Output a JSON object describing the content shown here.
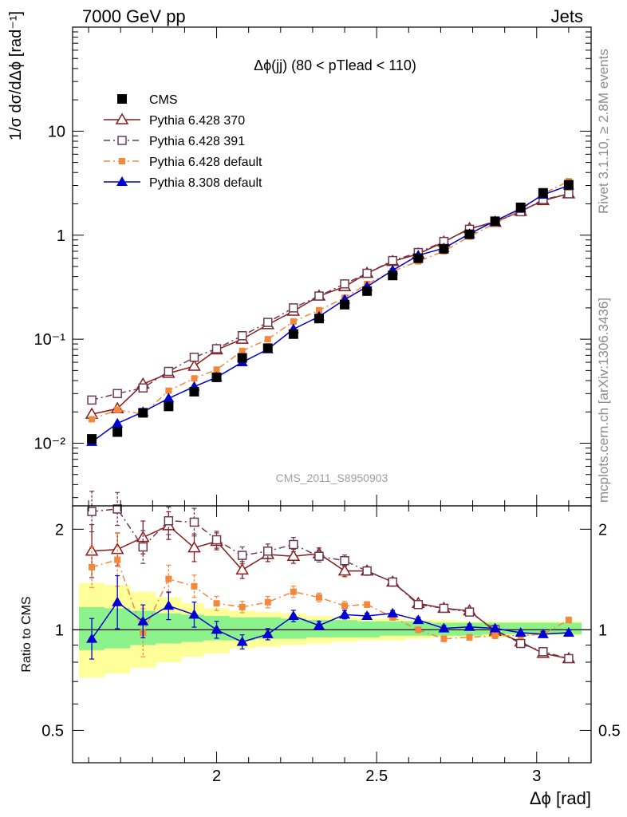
{
  "header": {
    "left": "7000 GeV pp",
    "right": "Jets"
  },
  "side_text": {
    "top": "Rivet 3.1.10, ≥ 2.8M events",
    "bottom": "mcplots.cern.ch [arXiv:1306.3436]"
  },
  "chart_data": {
    "type": "scatter",
    "title": "Δϕ(jj) (80 < pTlead <  110)",
    "watermark": "CMS_2011_S8950903",
    "xlabel": "Δϕ [rad]",
    "ylabel_main": "1/σ dσ/dΔϕ [rad⁻¹]",
    "ylabel_ratio": "Ratio to CMS",
    "x_range": [
      1.55,
      3.17
    ],
    "y_range_main": [
      0.0025,
      100
    ],
    "y_scale_main": "log",
    "y_range_ratio": [
      0.4,
      2.35
    ],
    "y_scale_ratio": "log",
    "x_ticks": [
      "2",
      "2.5",
      "3"
    ],
    "x_tick_values": [
      2,
      2.5,
      3
    ],
    "y_ticks_main": [
      "10⁻²",
      "10⁻¹",
      "1",
      "10"
    ],
    "y_tick_values_main": [
      0.01,
      0.1,
      1,
      10
    ],
    "y_ticks_ratio": [
      "0.5",
      "1",
      "2"
    ],
    "y_tick_values_ratio": [
      0.5,
      1,
      2
    ],
    "legend_position": "top-left",
    "x": [
      1.61,
      1.69,
      1.77,
      1.85,
      1.93,
      2.0,
      2.08,
      2.16,
      2.24,
      2.32,
      2.4,
      2.47,
      2.55,
      2.63,
      2.71,
      2.79,
      2.87,
      2.95,
      3.02,
      3.1
    ],
    "band_edges": [
      1.57,
      1.65,
      1.73,
      1.81,
      1.89,
      1.96,
      2.04,
      2.12,
      2.2,
      2.28,
      2.36,
      2.44,
      2.51,
      2.59,
      2.67,
      2.75,
      2.83,
      2.91,
      2.99,
      3.06,
      3.14
    ],
    "band_green_lo": [
      0.87,
      0.88,
      0.9,
      0.91,
      0.92,
      0.93,
      0.93,
      0.94,
      0.94,
      0.95,
      0.95,
      0.95,
      0.96,
      0.96,
      0.96,
      0.96,
      0.97,
      0.97,
      0.97,
      0.97
    ],
    "band_green_hi": [
      1.17,
      1.16,
      1.14,
      1.12,
      1.11,
      1.1,
      1.09,
      1.09,
      1.08,
      1.07,
      1.07,
      1.06,
      1.06,
      1.06,
      1.05,
      1.05,
      1.05,
      1.05,
      1.05,
      1.05
    ],
    "band_yellow_lo": [
      0.72,
      0.74,
      0.77,
      0.8,
      0.83,
      0.85,
      0.88,
      0.89,
      0.9,
      0.91,
      0.92,
      0.93,
      0.93,
      0.94,
      0.95,
      0.95,
      0.95,
      0.96,
      0.96,
      0.96
    ],
    "band_yellow_hi": [
      1.38,
      1.36,
      1.3,
      1.25,
      1.2,
      1.16,
      1.14,
      1.13,
      1.12,
      1.1,
      1.09,
      1.08,
      1.08,
      1.07,
      1.07,
      1.06,
      1.06,
      1.06,
      1.06,
      1.06
    ],
    "series": [
      {
        "name": "CMS",
        "color": "#000000",
        "marker": "square-filled",
        "line": "none",
        "values": [
          0.011,
          0.0128,
          0.0196,
          0.0226,
          0.0313,
          0.043,
          0.066,
          0.082,
          0.112,
          0.158,
          0.215,
          0.29,
          0.41,
          0.6,
          0.74,
          1.02,
          1.36,
          1.85,
          2.55,
          3.05
        ],
        "ratio": [
          1,
          1,
          1,
          1,
          1,
          1,
          1,
          1,
          1,
          1,
          1,
          1,
          1,
          1,
          1,
          1,
          1,
          1,
          1,
          1
        ]
      },
      {
        "name": "Pythia 6.428 370",
        "color": "#8b1a1a",
        "marker": "triangle-open",
        "line": "solid",
        "values": [
          0.019,
          0.0215,
          0.037,
          0.047,
          0.055,
          0.079,
          0.1,
          0.138,
          0.186,
          0.26,
          0.32,
          0.43,
          0.56,
          0.66,
          0.86,
          1.16,
          1.33,
          1.7,
          2.15,
          2.5
        ],
        "ratio": [
          1.72,
          1.74,
          1.89,
          2.05,
          1.76,
          1.84,
          1.51,
          1.68,
          1.66,
          1.69,
          1.5,
          1.5,
          1.39,
          1.2,
          1.16,
          1.14,
          0.99,
          0.92,
          0.85,
          0.82
        ],
        "ratio_err": [
          0.2,
          0.12,
          0.12,
          0.1,
          0.1,
          0.06,
          0.06,
          0.05,
          0.05,
          0.04,
          0.04,
          0.03,
          0.03,
          0.02,
          0.02,
          0.02,
          0.02,
          0.02,
          0.02,
          0.02
        ]
      },
      {
        "name": "Pythia 6.428 391",
        "color": "#6b3a50",
        "marker": "square-open",
        "line": "dash-dot",
        "values": [
          0.026,
          0.03,
          0.034,
          0.049,
          0.067,
          0.081,
          0.108,
          0.145,
          0.2,
          0.26,
          0.34,
          0.43,
          0.57,
          0.68,
          0.87,
          1.14,
          1.36,
          1.68,
          2.2,
          2.5
        ],
        "ratio": [
          2.26,
          2.3,
          1.77,
          2.12,
          2.1,
          1.86,
          1.67,
          1.72,
          1.8,
          1.66,
          1.61,
          1.5,
          1.39,
          1.19,
          1.16,
          1.13,
          1.0,
          0.91,
          0.86,
          0.82
        ],
        "ratio_err": [
          0.15,
          0.12,
          0.12,
          0.1,
          0.1,
          0.06,
          0.06,
          0.05,
          0.05,
          0.04,
          0.04,
          0.03,
          0.03,
          0.02,
          0.02,
          0.02,
          0.02,
          0.02,
          0.02,
          0.02
        ]
      },
      {
        "name": "Pythia 6.428 default",
        "color": "#f4883a",
        "marker": "square-filled-small",
        "line": "dash-dot",
        "values": [
          0.017,
          0.021,
          0.019,
          0.032,
          0.042,
          0.051,
          0.077,
          0.1,
          0.148,
          0.19,
          0.25,
          0.34,
          0.45,
          0.56,
          0.7,
          0.97,
          1.3,
          1.75,
          2.5,
          3.3
        ],
        "ratio": [
          1.54,
          1.62,
          0.98,
          1.42,
          1.35,
          1.2,
          1.17,
          1.21,
          1.3,
          1.25,
          1.18,
          1.19,
          1.09,
          1.0,
          0.94,
          0.95,
          0.96,
          0.96,
          0.97,
          1.07
        ],
        "ratio_err": [
          0.15,
          0.2,
          0.18,
          0.1,
          0.08,
          0.05,
          0.04,
          0.04,
          0.04,
          0.03,
          0.03,
          0.02,
          0.02,
          0.02,
          0.02,
          0.02,
          0.02,
          0.02,
          0.02,
          0.02
        ]
      },
      {
        "name": "Pythia 8.308 default",
        "color": "#0000d0",
        "marker": "triangle-filled",
        "line": "solid",
        "values": [
          0.0103,
          0.0155,
          0.02,
          0.027,
          0.035,
          0.043,
          0.06,
          0.08,
          0.125,
          0.165,
          0.24,
          0.32,
          0.46,
          0.64,
          0.75,
          1.03,
          1.37,
          1.8,
          2.45,
          3.0
        ],
        "ratio": [
          0.94,
          1.21,
          1.06,
          1.18,
          1.11,
          1.0,
          0.92,
          0.97,
          1.1,
          1.03,
          1.11,
          1.1,
          1.12,
          1.07,
          1.01,
          1.02,
          1.01,
          0.98,
          0.97,
          0.98
        ],
        "ratio_err": [
          0.15,
          0.2,
          0.12,
          0.1,
          0.09,
          0.06,
          0.05,
          0.04,
          0.04,
          0.03,
          0.03,
          0.02,
          0.02,
          0.02,
          0.02,
          0.02,
          0.02,
          0.02,
          0.02,
          0.02
        ]
      }
    ]
  }
}
